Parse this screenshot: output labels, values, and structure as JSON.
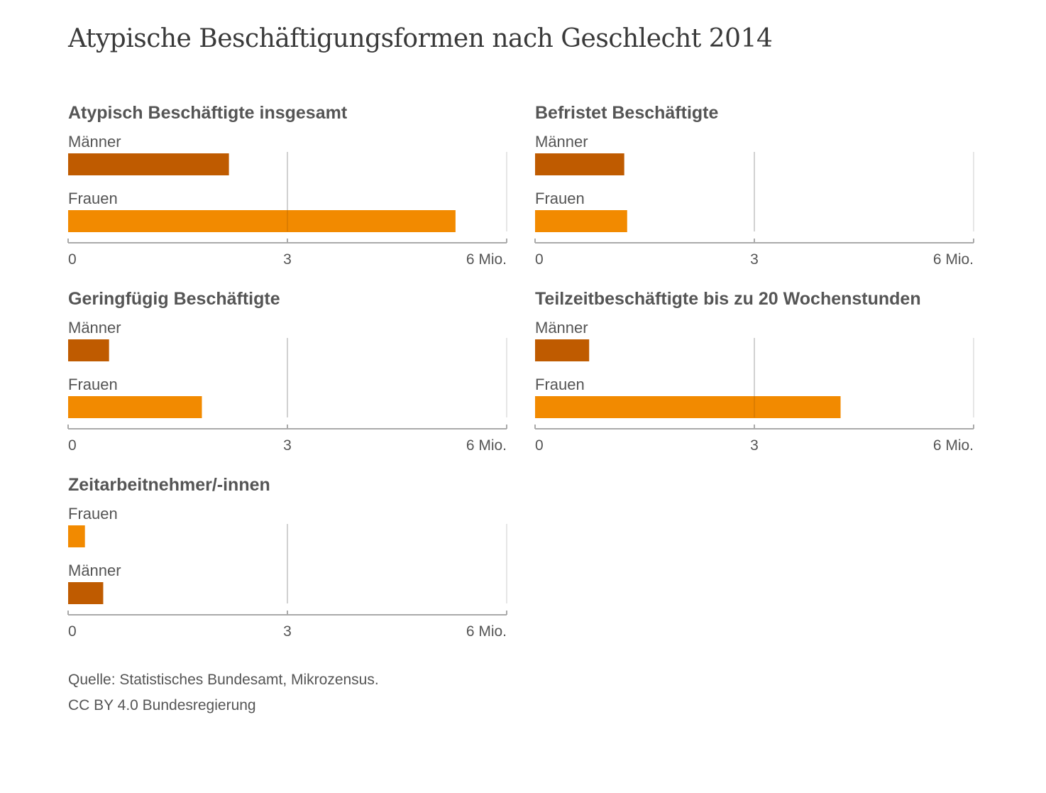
{
  "title": "Atypische Beschäftigungsformen nach Geschlecht 2014",
  "source": "Quelle: Statistisches Bundesamt, Mikrozensus.",
  "license": "CC BY 4.0 Bundesregierung",
  "colors": {
    "maenner": "#bf5b00",
    "frauen": "#f28a00",
    "grid": "#dddddd",
    "axis": "#aaaaaa",
    "text": "#555555"
  },
  "chart_data": [
    {
      "type": "bar",
      "title": "Atypisch Beschäftigte insgesamt",
      "categories": [
        "Männer",
        "Frauen"
      ],
      "values": [
        2.2,
        5.3
      ],
      "xlim": [
        0,
        6
      ],
      "ticks": [
        "0",
        "3",
        "6 Mio."
      ]
    },
    {
      "type": "bar",
      "title": "Befristet Beschäftigte",
      "categories": [
        "Männer",
        "Frauen"
      ],
      "values": [
        1.22,
        1.26
      ],
      "xlim": [
        0,
        6
      ],
      "ticks": [
        "0",
        "3",
        "6 Mio."
      ]
    },
    {
      "type": "bar",
      "title": "Geringfügig Beschäftigte",
      "categories": [
        "Männer",
        "Frauen"
      ],
      "values": [
        0.56,
        1.83
      ],
      "xlim": [
        0,
        6
      ],
      "ticks": [
        "0",
        "3",
        "6 Mio."
      ]
    },
    {
      "type": "bar",
      "title": "Teilzeitbeschäftigte bis zu 20 Wochenstunden",
      "categories": [
        "Männer",
        "Frauen"
      ],
      "values": [
        0.74,
        4.18
      ],
      "xlim": [
        0,
        6
      ],
      "ticks": [
        "0",
        "3",
        "6 Mio."
      ]
    },
    {
      "type": "bar",
      "title": "Zeitarbeitnehmer/-innen",
      "categories": [
        "Frauen",
        "Männer"
      ],
      "values": [
        0.23,
        0.48
      ],
      "xlim": [
        0,
        6
      ],
      "ticks": [
        "0",
        "3",
        "6 Mio."
      ]
    }
  ]
}
